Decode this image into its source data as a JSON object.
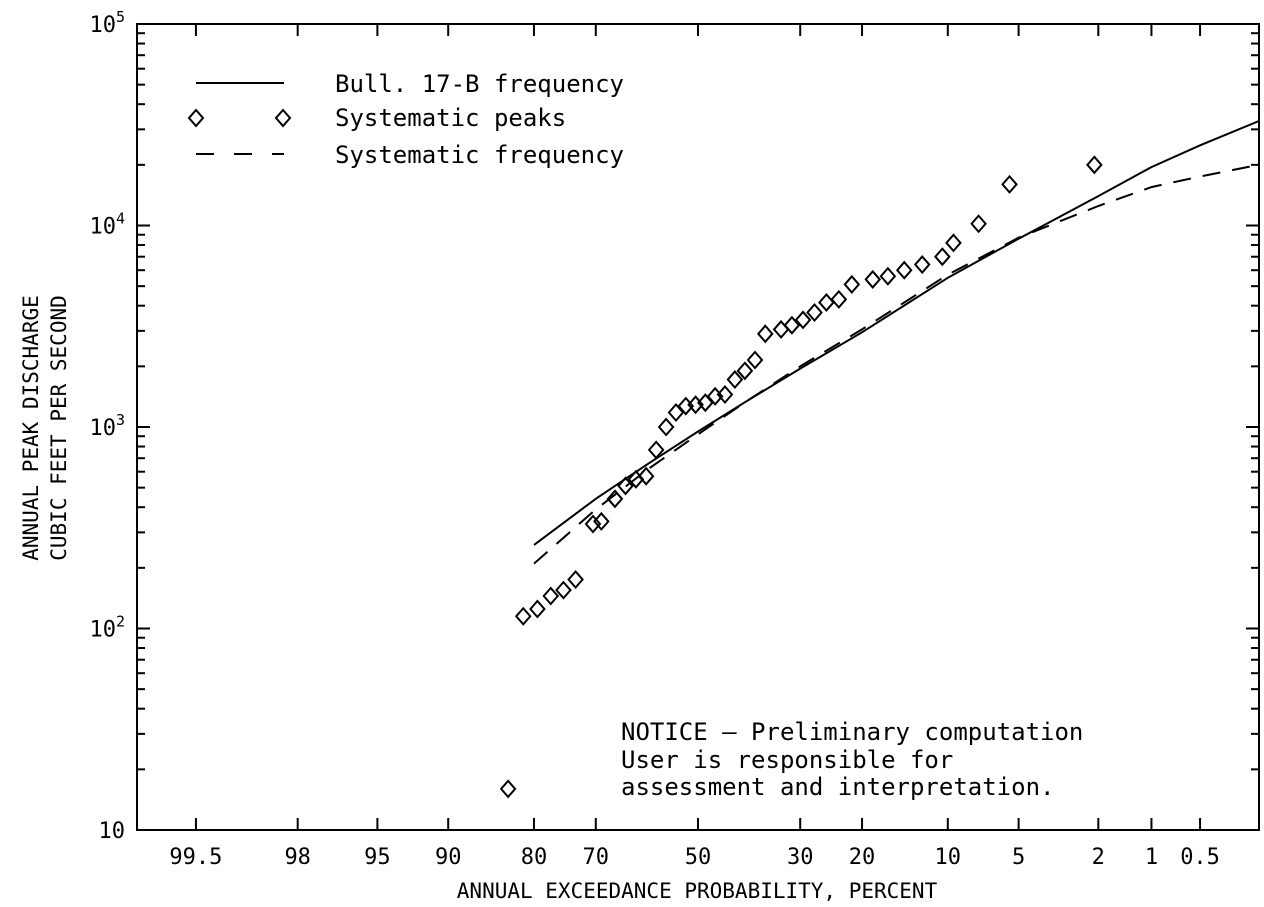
{
  "chart_data": {
    "type": "scatter",
    "title": "",
    "xlabel": "ANNUAL EXCEEDANCE PROBABILITY, PERCENT",
    "ylabel": "ANNUAL PEAK DISCHARGE",
    "ylabel2": "CUBIC FEET PER SECOND",
    "x_scale": "normal-probability (reversed)",
    "y_scale": "log",
    "xlim": [
      99.8,
      0.2
    ],
    "ylim": [
      10,
      100000
    ],
    "x_ticks": [
      {
        "value": 99.5,
        "label": "99.5"
      },
      {
        "value": 98,
        "label": "98"
      },
      {
        "value": 95,
        "label": "95"
      },
      {
        "value": 90,
        "label": "90"
      },
      {
        "value": 80,
        "label": "80"
      },
      {
        "value": 70,
        "label": "70"
      },
      {
        "value": 50,
        "label": "50"
      },
      {
        "value": 30,
        "label": "30"
      },
      {
        "value": 20,
        "label": "20"
      },
      {
        "value": 10,
        "label": "10"
      },
      {
        "value": 5,
        "label": "5"
      },
      {
        "value": 2,
        "label": "2"
      },
      {
        "value": 1,
        "label": "1"
      },
      {
        "value": 0.5,
        "label": "0.5"
      }
    ],
    "y_ticks": [
      {
        "value": 10,
        "base": "10",
        "exp": ""
      },
      {
        "value": 100,
        "base": "10",
        "exp": "2"
      },
      {
        "value": 1000,
        "base": "10",
        "exp": "3"
      },
      {
        "value": 10000,
        "base": "10",
        "exp": "4"
      },
      {
        "value": 100000,
        "base": "10",
        "exp": "5"
      }
    ],
    "legend_position": "top-left",
    "series": [
      {
        "name": "Bull. 17-B frequency",
        "style": "solid-line",
        "x": [
          80,
          70,
          60,
          50,
          40,
          30,
          20,
          10,
          5,
          2,
          1,
          0.5,
          0.2
        ],
        "y": [
          260,
          440,
          660,
          950,
          1350,
          1950,
          2950,
          5500,
          8600,
          14000,
          19500,
          25000,
          33000
        ]
      },
      {
        "name": "Systematic peaks",
        "style": "diamond-markers",
        "x": [
          83.5,
          81.5,
          79.5,
          77.5,
          75.5,
          73.5,
          70.5,
          69,
          66.5,
          64.5,
          62.5,
          60.5,
          58.5,
          56.5,
          54.5,
          52.5,
          50.5,
          48.5,
          46.5,
          44.5,
          42.5,
          40.5,
          38.5,
          36.5,
          33.5,
          31.5,
          29.5,
          27.5,
          25.5,
          23.5,
          21.5,
          18.5,
          16.5,
          14.5,
          12.5,
          10.5,
          9.5,
          7.5,
          5.5,
          2.1
        ],
        "y": [
          16,
          115,
          125,
          145,
          155,
          175,
          330,
          340,
          440,
          510,
          550,
          570,
          770,
          1000,
          1180,
          1270,
          1290,
          1320,
          1420,
          1450,
          1720,
          1900,
          2150,
          2900,
          3050,
          3200,
          3400,
          3700,
          4150,
          4300,
          5100,
          5400,
          5600,
          6000,
          6400,
          7000,
          8200,
          10200,
          16000,
          20000
        ]
      },
      {
        "name": "Systematic frequency",
        "style": "dashed-line",
        "x": [
          80,
          70,
          60,
          50,
          40,
          30,
          20,
          10,
          5,
          2,
          1,
          0.5,
          0.2
        ],
        "y": [
          210,
          390,
          620,
          920,
          1350,
          2000,
          3050,
          5700,
          8700,
          12500,
          15500,
          17500,
          20000
        ]
      }
    ],
    "annotations": [
      "NOTICE — Preliminary computation",
      "User is responsible for",
      "assessment and interpretation."
    ]
  },
  "colors": {
    "background": "#ffffff",
    "ink": "#000000"
  }
}
